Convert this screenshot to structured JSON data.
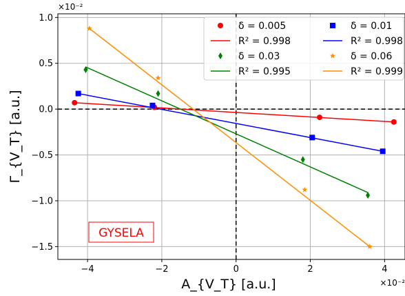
{
  "chart_data": {
    "type": "scatter",
    "xlabel": "A_{V_T} [a.u.]",
    "ylabel": "Γ_{V_T} [a.u.]",
    "x_multiplier": "×10⁻²",
    "y_multiplier": "×10⁻²",
    "xlim": [
      -4.8,
      4.55
    ],
    "ylim": [
      -1.64,
      1.04
    ],
    "x_ticks": [
      -4,
      -2,
      0,
      2,
      4
    ],
    "x_tick_labels": [
      "−4",
      "−2",
      "0",
      "2",
      "4"
    ],
    "y_ticks": [
      1.0,
      0.5,
      0.0,
      -0.5,
      -1.0,
      -1.5
    ],
    "y_tick_labels": [
      "1.0",
      "0.5",
      "0.0",
      "−0.5",
      "−1.0",
      "−1.5"
    ],
    "grid": true,
    "reference_lines": {
      "x": 0,
      "y": 0,
      "style": "dashed"
    },
    "legend_position": "top-right",
    "annotation": "GYSELA",
    "series": [
      {
        "name": "δ = 0.005",
        "fit_name": "R² = 0.998",
        "color": "#ff0000",
        "marker": "circle",
        "points": [
          [
            -4.35,
            0.07
          ],
          [
            -2.2,
            0.02
          ],
          [
            2.25,
            -0.09
          ],
          [
            4.25,
            -0.14
          ]
        ],
        "fit": [
          [
            -4.35,
            0.07
          ],
          [
            4.25,
            -0.14
          ]
        ]
      },
      {
        "name": "δ = 0.01",
        "fit_name": "R² = 0.998",
        "color": "#0000ff",
        "marker": "square",
        "points": [
          [
            -4.25,
            0.17
          ],
          [
            -2.25,
            0.04
          ],
          [
            2.05,
            -0.31
          ],
          [
            3.95,
            -0.46
          ]
        ],
        "fit": [
          [
            -4.25,
            0.17
          ],
          [
            3.95,
            -0.46
          ]
        ]
      },
      {
        "name": "δ = 0.03",
        "fit_name": "R² = 0.995",
        "color": "#008000",
        "marker": "diamond",
        "points": [
          [
            -4.05,
            0.43
          ],
          [
            -2.1,
            0.17
          ],
          [
            1.8,
            -0.55
          ],
          [
            3.55,
            -0.94
          ]
        ],
        "fit": [
          [
            -4.05,
            0.46
          ],
          [
            3.55,
            -0.91
          ]
        ]
      },
      {
        "name": "δ = 0.06",
        "fit_name": "R² = 0.999",
        "color": "#ff8c00",
        "marker": "star",
        "points": [
          [
            -3.95,
            0.88
          ],
          [
            -2.1,
            0.34
          ],
          [
            1.85,
            -0.88
          ],
          [
            3.6,
            -1.5
          ]
        ],
        "fit": [
          [
            -3.95,
            0.88
          ],
          [
            3.6,
            -1.5
          ]
        ]
      }
    ]
  }
}
